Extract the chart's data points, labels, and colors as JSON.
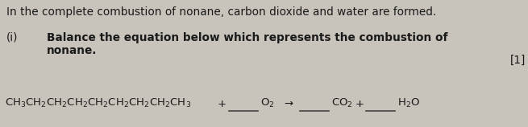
{
  "bg_color": "#c8c4bc",
  "text_color": "#1a1a1a",
  "line1": "In the complete combustion of nonane, carbon dioxide and water are formed.",
  "line1_fontsize": 9.8,
  "roman_text": "(i)",
  "instruction_line1": "Balance the equation below which represents the combustion of",
  "instruction_line2": "nonane.",
  "instruction_fontsize": 9.8,
  "mark_text": "[1]",
  "mark_fontsize": 9.8,
  "nonane_formula": "CH$_3$CH$_2$CH$_2$CH$_2$CH$_2$CH$_2$CH$_2$CH$_2$CH$_3$",
  "plus1_text": "+",
  "o2_text": "O$_2$",
  "arrow_text": "→",
  "co2_text": "CO$_2$",
  "plus2_text": "+",
  "h2o_text": "H$_2$O",
  "equation_fontsize": 9.5
}
